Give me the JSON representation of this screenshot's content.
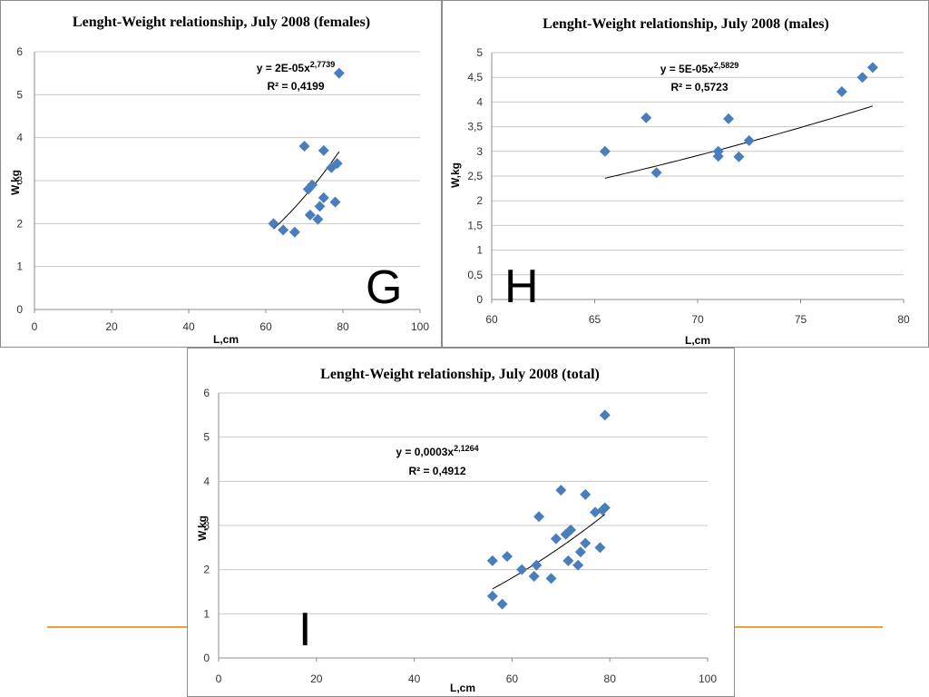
{
  "chart_data": [
    {
      "id": "g",
      "type": "scatter",
      "title": "Lenght-Weight relationship, July 2008 (females)",
      "xlabel": "L,cm",
      "ylabel": "W,kg",
      "xlim": [
        0,
        100
      ],
      "ylim": [
        0,
        6
      ],
      "xticks": [
        0,
        20,
        40,
        60,
        80,
        100
      ],
      "yticks": [
        0,
        1,
        2,
        3,
        4,
        5,
        6
      ],
      "tick_decimal": ",",
      "grid": true,
      "panel_letter": "G",
      "equation": {
        "base": "y = 2E-05x",
        "exp": "2,7739",
        "r2": "R² = 0,4199"
      },
      "trendline": {
        "a": 2e-05,
        "b": 2.7739,
        "x_range": [
          62,
          79
        ]
      },
      "points": [
        [
          62,
          2.0
        ],
        [
          64.5,
          1.85
        ],
        [
          67.5,
          1.8
        ],
        [
          70,
          3.8
        ],
        [
          71,
          2.8
        ],
        [
          71.5,
          2.2
        ],
        [
          72,
          2.9
        ],
        [
          73.5,
          2.1
        ],
        [
          74,
          2.4
        ],
        [
          75,
          2.6
        ],
        [
          75,
          3.7
        ],
        [
          77,
          3.3
        ],
        [
          78,
          2.5
        ],
        [
          78.5,
          3.4
        ],
        [
          79,
          5.5
        ]
      ]
    },
    {
      "id": "h",
      "type": "scatter",
      "title": "Lenght-Weight relationship, July 2008 (males)",
      "xlabel": "L,cm",
      "ylabel": "W,kg",
      "xlim": [
        60,
        80
      ],
      "ylim": [
        0,
        5
      ],
      "xticks": [
        60,
        65,
        70,
        75,
        80
      ],
      "yticks": [
        0,
        0.5,
        1,
        1.5,
        2,
        2.5,
        3,
        3.5,
        4,
        4.5,
        5
      ],
      "tick_decimal": ",",
      "grid": true,
      "panel_letter": "H",
      "equation": {
        "base": "y = 5E-05x",
        "exp": "2,5829",
        "r2": "R² = 0,5723"
      },
      "trendline": {
        "a": 5e-05,
        "b": 2.5829,
        "x_range": [
          65.5,
          78.5
        ]
      },
      "points": [
        [
          65.5,
          3.0
        ],
        [
          67.5,
          3.68
        ],
        [
          68,
          2.57
        ],
        [
          71,
          3.0
        ],
        [
          71,
          2.9
        ],
        [
          71.5,
          3.66
        ],
        [
          72,
          2.89
        ],
        [
          72.5,
          3.22
        ],
        [
          77,
          4.21
        ],
        [
          78,
          4.5
        ],
        [
          78.5,
          4.7
        ]
      ]
    },
    {
      "id": "i",
      "type": "scatter",
      "title": "Lenght-Weight relationship, July 2008 (total)",
      "xlabel": "L,cm",
      "ylabel": "W,kg",
      "xlim": [
        0,
        100
      ],
      "ylim": [
        0,
        6
      ],
      "xticks": [
        0,
        20,
        40,
        60,
        80,
        100
      ],
      "yticks": [
        0,
        1,
        2,
        3,
        4,
        5,
        6
      ],
      "tick_decimal": ",",
      "grid": true,
      "panel_letter": "I",
      "equation": {
        "base": "y = 0,0003x",
        "exp": "2,1264",
        "r2": "R² = 0,4912"
      },
      "trendline": {
        "a": 0.0003,
        "b": 2.1264,
        "x_range": [
          56,
          79
        ]
      },
      "points": [
        [
          56,
          2.2
        ],
        [
          56,
          1.4
        ],
        [
          58,
          1.22
        ],
        [
          59,
          2.3
        ],
        [
          62,
          2.0
        ],
        [
          64.5,
          1.85
        ],
        [
          65,
          2.1
        ],
        [
          65.5,
          3.2
        ],
        [
          68,
          1.8
        ],
        [
          69,
          2.7
        ],
        [
          70,
          3.8
        ],
        [
          71,
          2.8
        ],
        [
          71.5,
          2.2
        ],
        [
          72,
          2.9
        ],
        [
          73.5,
          2.1
        ],
        [
          74,
          2.4
        ],
        [
          75,
          2.6
        ],
        [
          75,
          3.7
        ],
        [
          77,
          3.3
        ],
        [
          78,
          2.5
        ],
        [
          78.5,
          3.35
        ],
        [
          79,
          3.4
        ],
        [
          79,
          5.5
        ]
      ]
    }
  ],
  "colors": {
    "marker": "#4a7ebb",
    "accent_line": "#e8a33b",
    "grid": "#c8c8c8",
    "border": "#8c8c8c"
  }
}
